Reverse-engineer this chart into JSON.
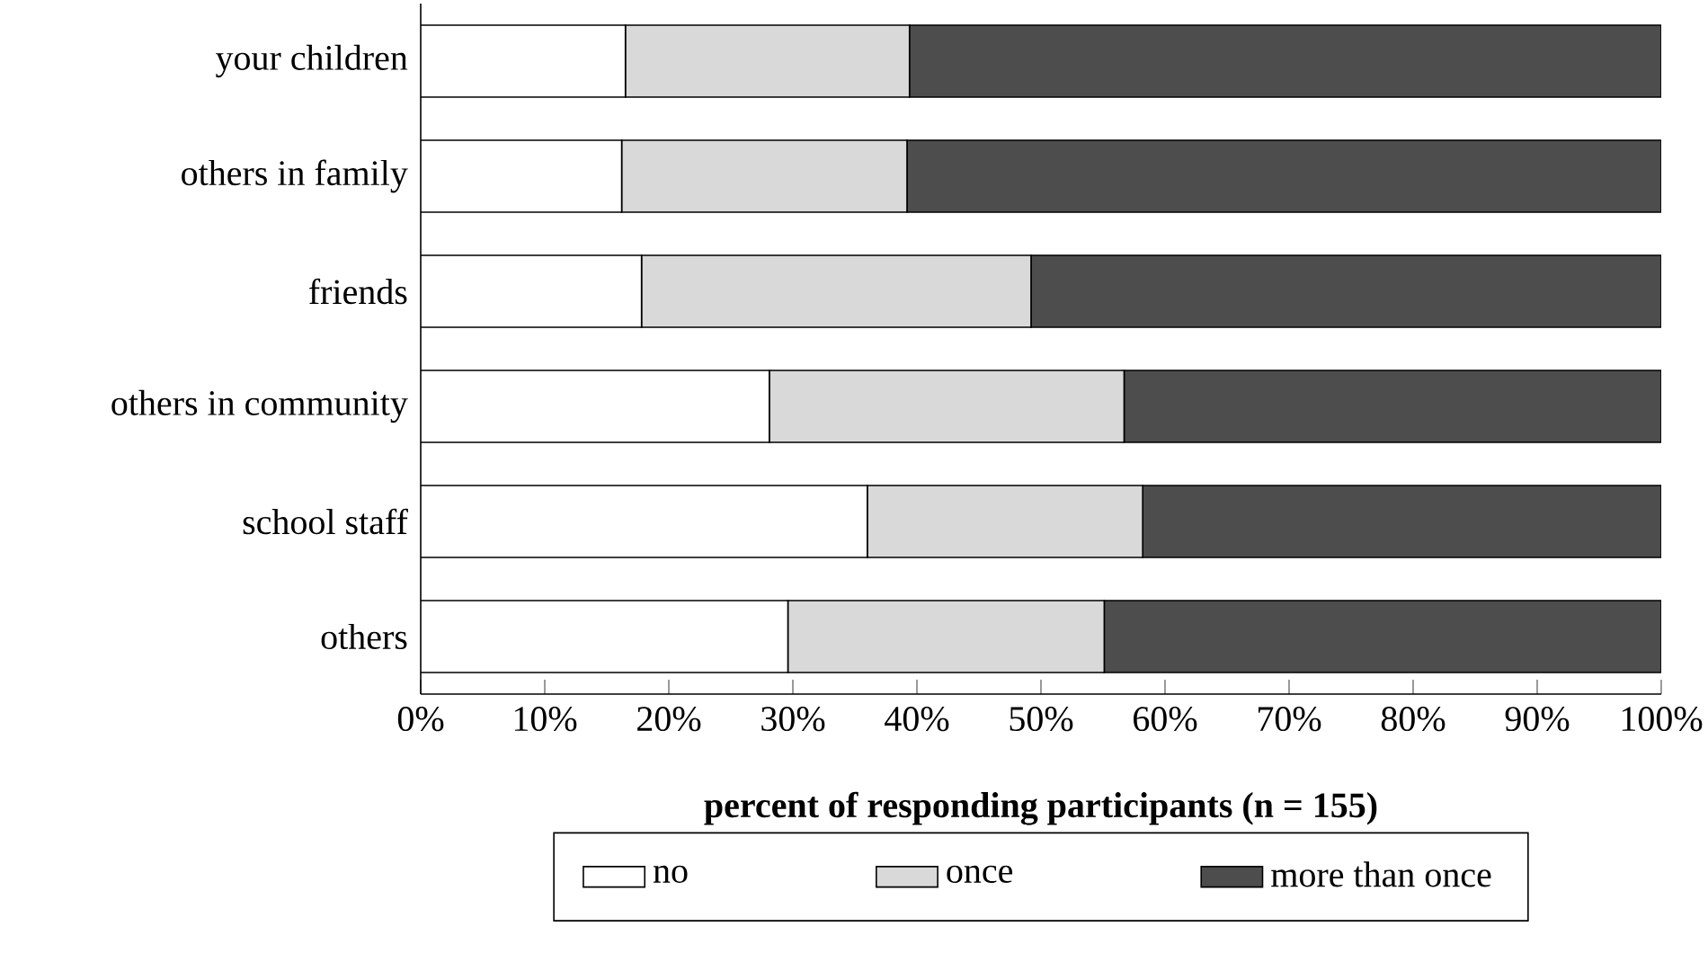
{
  "chart_data": {
    "type": "bar",
    "orientation": "horizontal",
    "stacked": true,
    "categories": [
      "your children",
      "others in family",
      "friends",
      "others in community",
      "school staff",
      "others"
    ],
    "series": [
      {
        "name": "no",
        "color": "#ffffff",
        "values": [
          16.5,
          16.2,
          17.8,
          28.1,
          36.0,
          29.6
        ]
      },
      {
        "name": "once",
        "color": "#d9d9d9",
        "values": [
          22.9,
          23.0,
          31.4,
          28.6,
          22.2,
          25.5
        ]
      },
      {
        "name": "more than once",
        "color": "#4d4d4d",
        "values": [
          60.6,
          60.8,
          50.8,
          43.3,
          41.8,
          44.9
        ]
      }
    ],
    "xlabel": "percent of responding participants (n = 155)",
    "xlim": [
      0,
      100
    ],
    "xticks": [
      {
        "value": 0,
        "label": "0%"
      },
      {
        "value": 10,
        "label": "10%"
      },
      {
        "value": 20,
        "label": "20%"
      },
      {
        "value": 30,
        "label": "30%"
      },
      {
        "value": 40,
        "label": "40%"
      },
      {
        "value": 50,
        "label": "50%"
      },
      {
        "value": 60,
        "label": "60%"
      },
      {
        "value": 70,
        "label": "70%"
      },
      {
        "value": 80,
        "label": "80%"
      },
      {
        "value": 90,
        "label": "90%"
      },
      {
        "value": 100,
        "label": "100%"
      }
    ],
    "legend": "bottom",
    "grid": false
  }
}
